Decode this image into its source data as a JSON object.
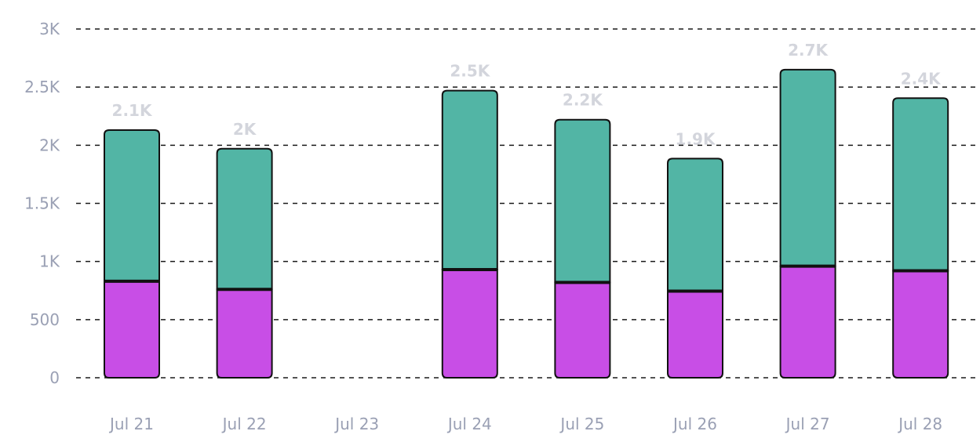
{
  "chart_data": {
    "type": "bar",
    "stacked": true,
    "categories": [
      "Jul 21",
      "Jul 22",
      "Jul 23",
      "Jul 24",
      "Jul 25",
      "Jul 26",
      "Jul 27",
      "Jul 28"
    ],
    "series": [
      {
        "color": "#c84ee6",
        "values": [
          830,
          760,
          0,
          930,
          820,
          745,
          960,
          920
        ]
      },
      {
        "color": "#52b5a5",
        "values": [
          1300,
          1210,
          0,
          1540,
          1400,
          1140,
          1690,
          1485
        ]
      }
    ],
    "totals_labels": [
      "2.1K",
      "2K",
      "",
      "2.5K",
      "2.2K",
      "1.9K",
      "2.7K",
      "2.4K"
    ],
    "y_ticks": [
      0,
      500,
      1000,
      1500,
      2000,
      2500,
      3000
    ],
    "y_tick_labels": [
      "0",
      "500",
      "1K",
      "1.5K",
      "2K",
      "2.5K",
      "3K"
    ],
    "ylim": [
      0,
      3000
    ],
    "grid": true,
    "grid_style": "dashed",
    "legend": "none",
    "title": "",
    "xlabel": "",
    "ylabel": ""
  }
}
